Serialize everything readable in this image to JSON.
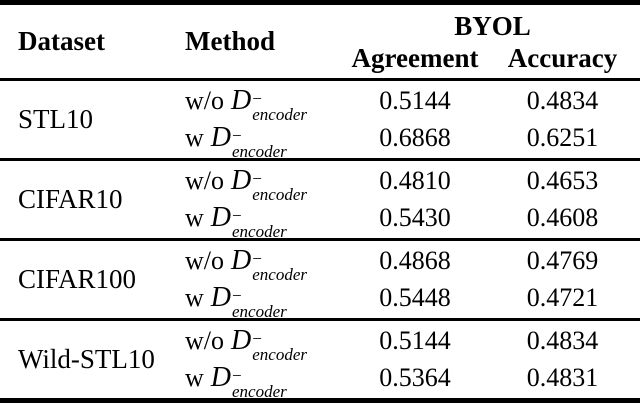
{
  "table": {
    "headers": {
      "dataset": "Dataset",
      "method": "Method",
      "group": "BYOL",
      "col1": "Agreement",
      "col2": "Accuracy"
    },
    "method_labels": {
      "without_prefix": "w/o",
      "with_prefix": "w",
      "d_symbol": "D",
      "superscript": "−",
      "subscript": "encoder"
    },
    "sections": [
      {
        "dataset": "STL10",
        "rows": [
          {
            "agreement": "0.5144",
            "accuracy": "0.4834"
          },
          {
            "agreement": "0.6868",
            "accuracy": "0.6251"
          }
        ]
      },
      {
        "dataset": "CIFAR10",
        "rows": [
          {
            "agreement": "0.4810",
            "accuracy": "0.4653"
          },
          {
            "agreement": "0.5430",
            "accuracy": "0.4608"
          }
        ]
      },
      {
        "dataset": "CIFAR100",
        "rows": [
          {
            "agreement": "0.4868",
            "accuracy": "0.4769"
          },
          {
            "agreement": "0.5448",
            "accuracy": "0.4721"
          }
        ]
      },
      {
        "dataset": "Wild-STL10",
        "rows": [
          {
            "agreement": "0.5144",
            "accuracy": "0.4834"
          },
          {
            "agreement": "0.5364",
            "accuracy": "0.4831"
          }
        ]
      }
    ]
  },
  "colors": {
    "text": "#000000",
    "background": "#ffffff",
    "rule": "#000000"
  }
}
